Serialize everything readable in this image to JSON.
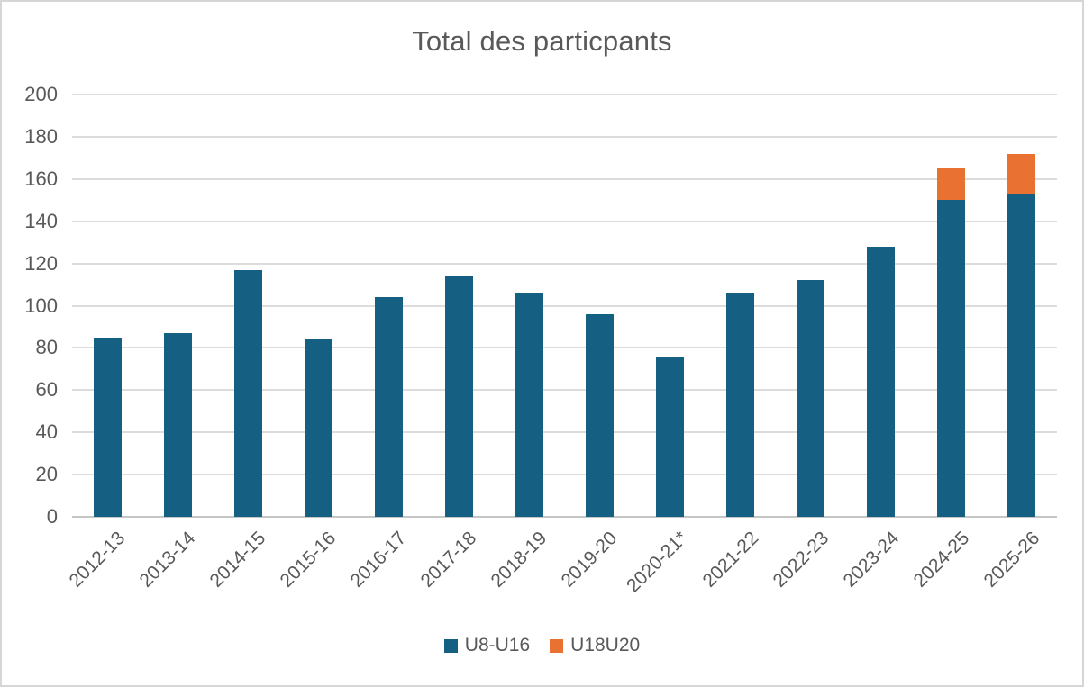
{
  "chart_data": {
    "type": "bar",
    "stacked": true,
    "title": "Total des particpants",
    "categories": [
      "2012-13",
      "2013-14",
      "2014-15",
      "2015-16",
      "2016-17",
      "2017-18",
      "2018-19",
      "2019-20",
      "2020-21*",
      "2021-22",
      "2022-23",
      "2023-24",
      "2024-25",
      "2025-26"
    ],
    "series": [
      {
        "name": "U8-U16",
        "color": "#156082",
        "values": [
          85,
          87,
          117,
          84,
          104,
          114,
          106,
          96,
          76,
          106,
          112,
          128,
          150,
          153
        ]
      },
      {
        "name": "U18U20",
        "color": "#E97132",
        "values": [
          0,
          0,
          0,
          0,
          0,
          0,
          0,
          0,
          0,
          0,
          0,
          0,
          15,
          19
        ]
      }
    ],
    "totals": [
      85,
      87,
      117,
      84,
      104,
      114,
      106,
      96,
      76,
      106,
      112,
      128,
      165,
      172
    ],
    "ylim": [
      0,
      200
    ],
    "ytick_step": 20,
    "grid": true,
    "legend_position": "bottom",
    "xlabel": "",
    "ylabel": ""
  },
  "colors": {
    "axis_text": "#595959",
    "title_text": "#595959",
    "gridline": "#dcdcdc",
    "baseline": "#c6c6c6",
    "frame_border": "#d6d6d6"
  }
}
